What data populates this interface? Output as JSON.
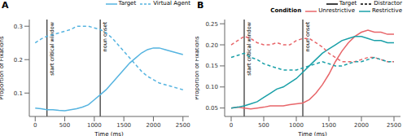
{
  "chart_data": [
    {
      "type": "line",
      "title": "A",
      "x_label": "Time (ms)",
      "y_label": "Proportion of Fixations",
      "x": [
        0,
        100,
        200,
        300,
        400,
        500,
        600,
        700,
        800,
        900,
        1000,
        1100,
        1200,
        1300,
        1400,
        1500,
        1600,
        1700,
        1800,
        1900,
        2000,
        2100,
        2200,
        2300,
        2400,
        2500
      ],
      "xlim": [
        -100,
        2600
      ],
      "xticks": [
        0,
        500,
        1000,
        1500,
        2000,
        2500
      ],
      "ylim": [
        0.03,
        0.32
      ],
      "yticks": [
        0.1,
        0.2,
        0.3
      ],
      "grid": false,
      "legend": "upper right",
      "annotations": [
        {
          "x": 200,
          "text": "start critical window"
        },
        {
          "x": 1100,
          "text": "noun onset"
        }
      ],
      "series": [
        {
          "name": "Target",
          "color": "#56b4e0",
          "line_style": "solid",
          "values": [
            0.055,
            0.053,
            0.05,
            0.05,
            0.048,
            0.047,
            0.05,
            0.053,
            0.058,
            0.065,
            0.08,
            0.095,
            0.11,
            0.13,
            0.15,
            0.17,
            0.19,
            0.205,
            0.22,
            0.23,
            0.235,
            0.235,
            0.23,
            0.225,
            0.22,
            0.215
          ]
        },
        {
          "name": "Virtual Agent",
          "color": "#56b4e0",
          "line_style": "dashed",
          "values": [
            0.25,
            0.262,
            0.27,
            0.275,
            0.28,
            0.285,
            0.29,
            0.3,
            0.3,
            0.3,
            0.295,
            0.29,
            0.28,
            0.265,
            0.245,
            0.225,
            0.205,
            0.185,
            0.165,
            0.15,
            0.14,
            0.13,
            0.125,
            0.12,
            0.115,
            0.11
          ]
        }
      ]
    },
    {
      "type": "line",
      "title": "B",
      "x_label": "Time (ms)",
      "y_label": "Proportion of Fixations",
      "x": [
        0,
        100,
        200,
        300,
        400,
        500,
        600,
        700,
        800,
        900,
        1000,
        1100,
        1200,
        1300,
        1400,
        1500,
        1600,
        1700,
        1800,
        1900,
        2000,
        2100,
        2200,
        2300,
        2400,
        2500
      ],
      "xlim": [
        -100,
        2600
      ],
      "xticks": [
        0,
        500,
        1000,
        1500,
        2000,
        2500
      ],
      "ylim": [
        0.03,
        0.26
      ],
      "yticks": [
        0.05,
        {
          "value": 0.1,
          "label": "0.10"
        },
        0.15,
        {
          "value": 0.2,
          "label": "0.20"
        },
        0.25
      ],
      "grid": false,
      "legend": "upper right",
      "legend_title": "Condition",
      "annotations": [
        {
          "x": 200,
          "text": "start critical window"
        },
        {
          "x": 1100,
          "text": "noun onset"
        }
      ],
      "series": [
        {
          "name": "Target",
          "group": "Unrestrictive",
          "color": "#e8666a",
          "line_style": "solid",
          "values": [
            0.05,
            0.052,
            0.05,
            0.048,
            0.05,
            0.052,
            0.055,
            0.055,
            0.055,
            0.058,
            0.06,
            0.062,
            0.07,
            0.085,
            0.105,
            0.13,
            0.16,
            0.185,
            0.205,
            0.22,
            0.23,
            0.235,
            0.23,
            0.23,
            0.225,
            0.225
          ]
        },
        {
          "name": "Target",
          "group": "Restrictive",
          "color": "#1aa0a8",
          "line_style": "solid",
          "values": [
            0.05,
            0.052,
            0.055,
            0.06,
            0.065,
            0.075,
            0.085,
            0.095,
            0.1,
            0.11,
            0.12,
            0.135,
            0.15,
            0.165,
            0.18,
            0.19,
            0.2,
            0.21,
            0.215,
            0.22,
            0.22,
            0.215,
            0.21,
            0.21,
            0.205,
            0.205
          ]
        },
        {
          "name": "Distractor",
          "group": "Unrestrictive",
          "color": "#e8666a",
          "line_style": "dashed",
          "values": [
            0.2,
            0.21,
            0.22,
            0.215,
            0.205,
            0.2,
            0.2,
            0.205,
            0.2,
            0.2,
            0.21,
            0.215,
            0.215,
            0.205,
            0.195,
            0.18,
            0.17,
            0.16,
            0.16,
            0.16,
            0.165,
            0.17,
            0.17,
            0.165,
            0.16,
            0.16
          ]
        },
        {
          "name": "Distractor",
          "group": "Restrictive",
          "color": "#1aa0a8",
          "line_style": "dashed",
          "values": [
            0.17,
            0.175,
            0.18,
            0.17,
            0.165,
            0.155,
            0.15,
            0.145,
            0.14,
            0.14,
            0.14,
            0.145,
            0.15,
            0.155,
            0.16,
            0.155,
            0.15,
            0.15,
            0.155,
            0.16,
            0.16,
            0.165,
            0.17,
            0.165,
            0.16,
            0.16
          ]
        }
      ]
    }
  ]
}
